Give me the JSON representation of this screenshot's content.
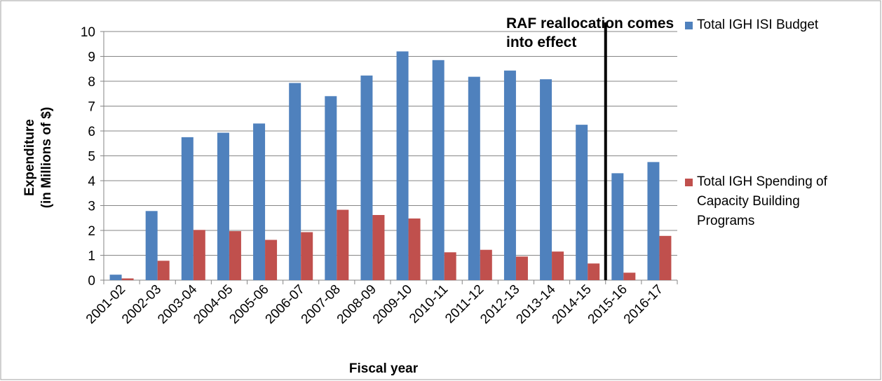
{
  "chart_data": {
    "type": "bar",
    "annotation": [
      "RAF reallocation comes",
      "into effect"
    ],
    "xlabel": "Fiscal year",
    "ylabel": [
      "Expenditure",
      "(in Millions of $)"
    ],
    "categories": [
      "2001-02",
      "2002-03",
      "2003-04",
      "2004-05",
      "2005-06",
      "2006-07",
      "2007-08",
      "2008-09",
      "2009-10",
      "2010-11",
      "2011-12",
      "2012-13",
      "2013-14",
      "2014-15",
      "2015-16",
      "2016-17"
    ],
    "series": [
      {
        "name": "Total IGH ISI Budget",
        "color": "#4f81bd",
        "values": [
          0.22,
          2.78,
          5.75,
          5.93,
          6.3,
          7.93,
          7.4,
          8.23,
          9.2,
          8.85,
          8.18,
          8.43,
          8.08,
          6.25,
          4.3,
          4.75
        ]
      },
      {
        "name": "Total IGH Spending of Capacity Building Programs",
        "color": "#c0504d",
        "values": [
          0.07,
          0.78,
          2.02,
          1.97,
          1.62,
          1.93,
          2.83,
          2.62,
          2.48,
          1.12,
          1.22,
          0.95,
          1.15,
          0.67,
          0.3,
          1.78
        ]
      }
    ],
    "ylim": [
      0,
      10
    ],
    "yticks": [
      0,
      1,
      2,
      3,
      4,
      5,
      6,
      7,
      8,
      9,
      10
    ],
    "grid": true
  }
}
